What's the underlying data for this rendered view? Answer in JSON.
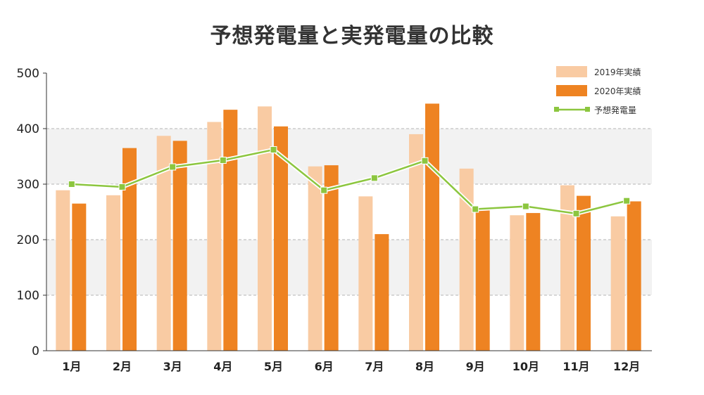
{
  "chart_data": {
    "type": "bar",
    "title": "予想発電量と実発電量の比較",
    "xlabel": "",
    "ylabel": "",
    "categories": [
      "1月",
      "2月",
      "3月",
      "4月",
      "5月",
      "6月",
      "7月",
      "8月",
      "9月",
      "10月",
      "11月",
      "12月"
    ],
    "ylim": [
      0,
      500
    ],
    "yticks": [
      0,
      100,
      200,
      300,
      400,
      500
    ],
    "grid": true,
    "legend": "top-right",
    "series": [
      {
        "name": "2019年実績",
        "type": "bar",
        "color": "#f9cba3",
        "values": [
          289,
          280,
          387,
          412,
          440,
          332,
          278,
          390,
          328,
          244,
          298,
          242
        ]
      },
      {
        "name": "2020年実績",
        "type": "bar",
        "color": "#ee8322",
        "values": [
          265,
          365,
          378,
          434,
          404,
          334,
          210,
          445,
          253,
          248,
          279,
          269
        ]
      },
      {
        "name": "予想発電量",
        "type": "line",
        "color": "#8cc63f",
        "values": [
          300,
          295,
          331,
          343,
          362,
          289,
          311,
          342,
          255,
          260,
          247,
          270
        ]
      }
    ]
  }
}
